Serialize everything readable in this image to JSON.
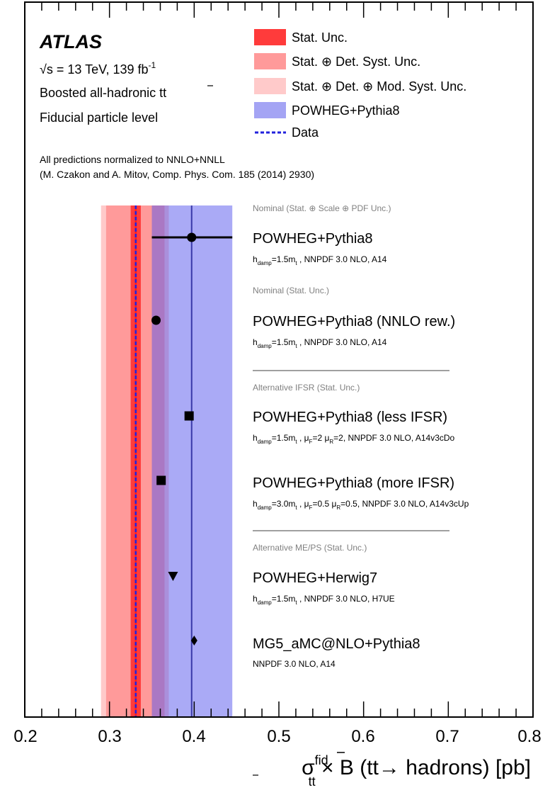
{
  "header": {
    "experiment": "ATLAS",
    "energy_sqrt": "√s",
    "energy_rest": " = 13 TeV, 139 fb",
    "lumi_exp": "-1",
    "line2_a": "Boosted all-hadronic t",
    "line2_b": "t",
    "line3": "Fiducial particle level",
    "norm1": "All predictions normalized to NNLO+NNLL",
    "norm2": "(M. Czakon and A. Mitov, Comp. Phys. Com. 185 (2014) 2930)"
  },
  "legend": [
    {
      "label": "Stat. Unc.",
      "kind": "box",
      "color": "#ff3b3b"
    },
    {
      "label": "Stat. ⊕ Det. Syst. Unc.",
      "kind": "box",
      "color": "#ff9a9a"
    },
    {
      "label": "Stat. ⊕ Det. ⊕ Mod. Syst. Unc.",
      "kind": "box",
      "color": "#ffcaca"
    },
    {
      "label": "POWHEG+Pythia8",
      "kind": "box",
      "color": "#a4a4f4"
    },
    {
      "label": "Data",
      "kind": "line",
      "color": "#2222dd"
    }
  ],
  "sections": [
    "Nominal (Stat. ⊕ Scale ⊕ PDF Unc.)",
    "Nominal (Stat. Unc.)",
    "Alternative IFSR (Stat. Unc.)",
    "Alternative ME/PS (Stat. Unc.)"
  ],
  "predictions": [
    {
      "name": "POWHEG+Pythia8",
      "marker": "circle",
      "value": 0.397,
      "err_low": 0.35,
      "err_high": 0.445,
      "sub": {
        "hd": "h",
        "hd_sub": "damp",
        "hd_eq": "=1.5m",
        "m_sub": "t",
        "rest": " , NNPDF 3.0 NLO, A14"
      }
    },
    {
      "name": "POWHEG+Pythia8 (NNLO rew.)",
      "marker": "circle",
      "value": 0.355,
      "sub": {
        "hd": "h",
        "hd_sub": "damp",
        "hd_eq": "=1.5m",
        "m_sub": "t",
        "rest": " , NNPDF 3.0 NLO, A14"
      }
    },
    {
      "name": "POWHEG+Pythia8 (less IFSR)",
      "marker": "square",
      "value": 0.394,
      "sub": {
        "hd": "h",
        "hd_sub": "damp",
        "hd_eq": "=1.5m",
        "m_sub": "t",
        "rest": " , μ",
        "f": "F",
        "f_eq": "=2 μ",
        "r": "R",
        "tail": "=2, NNPDF 3.0 NLO, A14v3cDo"
      }
    },
    {
      "name": "POWHEG+Pythia8 (more IFSR)",
      "marker": "square",
      "value": 0.361,
      "sub": {
        "hd": "h",
        "hd_sub": "damp",
        "hd_eq": "=3.0m",
        "m_sub": "t",
        "rest": " , μ",
        "f": "F",
        "f_eq": "=0.5 μ",
        "r": "R",
        "tail": "=0.5, NNPDF 3.0 NLO, A14v3cUp"
      }
    },
    {
      "name": "POWHEG+Herwig7",
      "marker": "triangle",
      "value": 0.375,
      "sub": {
        "hd": "h",
        "hd_sub": "damp",
        "hd_eq": "=1.5m",
        "m_sub": "t",
        "rest": " , NNPDF 3.0 NLO, H7UE"
      }
    },
    {
      "name": "MG5_aMC@NLO+Pythia8",
      "marker": "diamond",
      "value": 0.4,
      "sub": {
        "plain": "NNPDF 3.0 NLO, A14"
      }
    }
  ],
  "xaxis": {
    "ticks": [
      "0.2",
      "0.3",
      "0.4",
      "0.5",
      "0.6",
      "0.7",
      "0.8"
    ],
    "label_sigma": "σ",
    "label_sup": "fid",
    "label_sub": "tt",
    "label_rest": " × B (tt→ hadrons) [pb]"
  },
  "chart_data": {
    "type": "scatter",
    "xlim": [
      0.2,
      0.8
    ],
    "xlabel": "σ fid tt × B (tt→ hadrons) [pb]",
    "data": {
      "value": 0.331
    },
    "bands": [
      {
        "name": "Stat. ⊕ Det. ⊕ Mod. Syst. Unc.",
        "low": 0.29,
        "high": 0.37
      },
      {
        "name": "Stat. ⊕ Det. Syst. Unc.",
        "low": 0.296,
        "high": 0.365
      },
      {
        "name": "Stat. Unc.",
        "low": 0.325,
        "high": 0.337
      }
    ],
    "prediction_band": {
      "name": "POWHEG+Pythia8",
      "low": 0.35,
      "high": 0.445,
      "central": 0.397
    },
    "points": [
      {
        "name": "POWHEG+Pythia8",
        "x": 0.397,
        "xerr_low": 0.35,
        "xerr_high": 0.445
      },
      {
        "name": "POWHEG+Pythia8 (NNLO rew.)",
        "x": 0.355
      },
      {
        "name": "POWHEG+Pythia8 (less IFSR)",
        "x": 0.394
      },
      {
        "name": "POWHEG+Pythia8 (more IFSR)",
        "x": 0.361
      },
      {
        "name": "POWHEG+Herwig7",
        "x": 0.375
      },
      {
        "name": "MG5_aMC@NLO+Pythia8",
        "x": 0.4
      }
    ]
  }
}
